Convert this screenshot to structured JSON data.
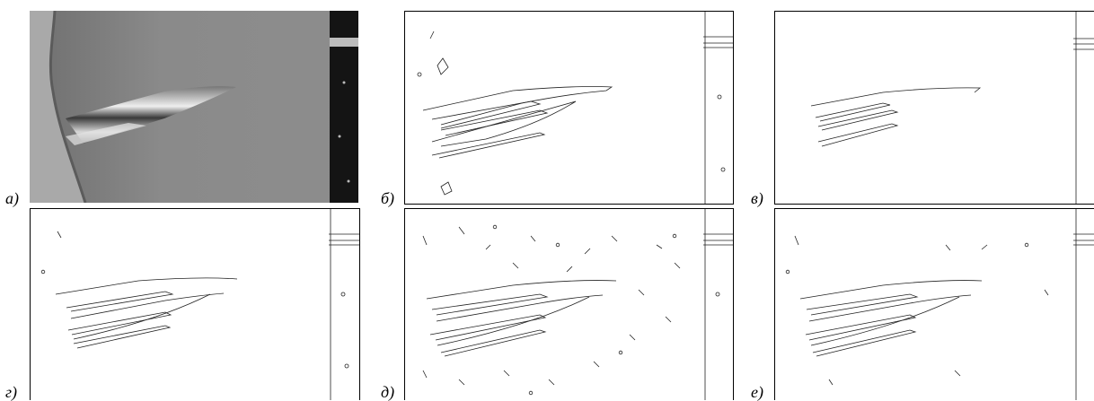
{
  "figure": {
    "panels": [
      {
        "id": "a",
        "label": "а)",
        "kind": "photo"
      },
      {
        "id": "b",
        "label": "б)",
        "kind": "edges"
      },
      {
        "id": "v",
        "label": "в)",
        "kind": "edges"
      },
      {
        "id": "g",
        "label": "г)",
        "kind": "edges"
      },
      {
        "id": "d",
        "label": "д)",
        "kind": "edges"
      },
      {
        "id": "e",
        "label": "е)",
        "kind": "edges"
      }
    ]
  }
}
